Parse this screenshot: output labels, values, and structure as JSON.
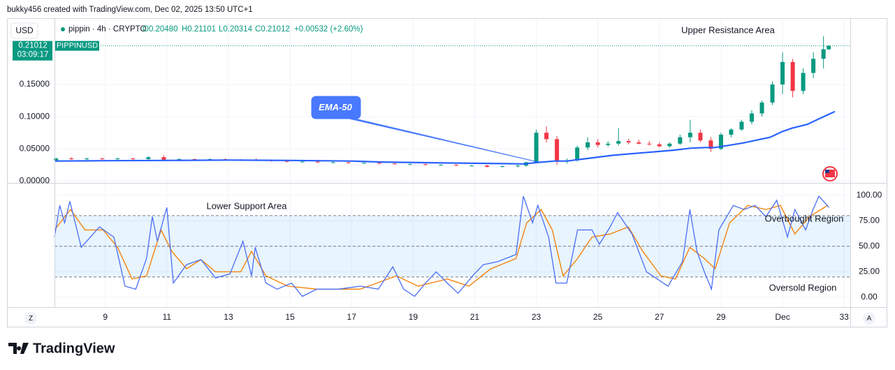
{
  "header": {
    "attribution": "bukky456 created with TradingView.com, Dec 02, 2025 13:50 UTC+1"
  },
  "toolbar": {
    "currency": "USD",
    "left_button": "Z",
    "right_button": "A"
  },
  "footer": {
    "brand": "TradingView"
  },
  "chart_data": [
    {
      "type": "candlestick",
      "legend": {
        "symbol": "pippin · 4h · CRYPTO",
        "open": "O0.20480",
        "high": "H0.21101",
        "low": "L0.20314",
        "close": "C0.21012",
        "change": "+0.00532 (+2.60%)"
      },
      "last_price": {
        "price": "0.21012",
        "countdown": "03:09:17",
        "ticker": "PIPPINUSD"
      },
      "annotations": {
        "upper": "Upper Resistance Area"
      },
      "up_color": "#089981",
      "down_color": "#f23645",
      "x": [
        7.4,
        7.9,
        8.4,
        8.9,
        9.4,
        9.9,
        10.4,
        10.9,
        11.4,
        11.9,
        12.4,
        12.9,
        13.4,
        13.9,
        14.4,
        14.9,
        15.4,
        15.9,
        16.4,
        16.9,
        17.4,
        17.9,
        18.4,
        18.9,
        19.4,
        19.9,
        20.4,
        20.9,
        21.4,
        21.9,
        22.4,
        22.67,
        23.0,
        23.33,
        23.67,
        24.0,
        24.33,
        24.67,
        25.0,
        25.33,
        25.67,
        26.0,
        26.33,
        26.67,
        27.0,
        27.33,
        27.67,
        28.0,
        28.33,
        28.67,
        29.0,
        29.33,
        29.67,
        30.0,
        30.33,
        30.67,
        31.0,
        31.33,
        31.67,
        32.0,
        32.33,
        32.5
      ],
      "open": [
        0.032,
        0.035,
        0.034,
        0.035,
        0.034,
        0.035,
        0.034,
        0.037,
        0.033,
        0.034,
        0.033,
        0.034,
        0.033,
        0.033,
        0.032,
        0.031,
        0.03,
        0.03,
        0.029,
        0.029,
        0.028,
        0.028,
        0.027,
        0.026,
        0.026,
        0.025,
        0.025,
        0.024,
        0.024,
        0.022,
        0.023,
        0.024,
        0.029,
        0.075,
        0.065,
        0.03,
        0.032,
        0.052,
        0.06,
        0.056,
        0.058,
        0.062,
        0.06,
        0.058,
        0.057,
        0.054,
        0.058,
        0.068,
        0.075,
        0.063,
        0.05,
        0.072,
        0.08,
        0.092,
        0.105,
        0.122,
        0.15,
        0.185,
        0.14,
        0.168,
        0.19,
        0.2048
      ],
      "high": [
        0.036,
        0.037,
        0.036,
        0.036,
        0.036,
        0.036,
        0.038,
        0.04,
        0.035,
        0.035,
        0.035,
        0.035,
        0.034,
        0.035,
        0.033,
        0.032,
        0.031,
        0.031,
        0.03,
        0.03,
        0.029,
        0.029,
        0.028,
        0.027,
        0.027,
        0.026,
        0.026,
        0.025,
        0.025,
        0.024,
        0.025,
        0.03,
        0.08,
        0.085,
        0.07,
        0.035,
        0.055,
        0.068,
        0.065,
        0.062,
        0.082,
        0.066,
        0.064,
        0.062,
        0.06,
        0.06,
        0.072,
        0.095,
        0.08,
        0.068,
        0.075,
        0.082,
        0.095,
        0.11,
        0.125,
        0.155,
        0.2,
        0.19,
        0.175,
        0.2,
        0.225,
        0.21101
      ],
      "low": [
        0.03,
        0.033,
        0.032,
        0.033,
        0.033,
        0.033,
        0.033,
        0.031,
        0.032,
        0.032,
        0.032,
        0.032,
        0.032,
        0.031,
        0.03,
        0.029,
        0.029,
        0.028,
        0.028,
        0.027,
        0.027,
        0.026,
        0.026,
        0.025,
        0.024,
        0.024,
        0.023,
        0.023,
        0.021,
        0.021,
        0.021,
        0.022,
        0.028,
        0.06,
        0.025,
        0.027,
        0.03,
        0.048,
        0.052,
        0.053,
        0.055,
        0.057,
        0.057,
        0.055,
        0.052,
        0.052,
        0.056,
        0.06,
        0.06,
        0.045,
        0.048,
        0.068,
        0.078,
        0.088,
        0.1,
        0.118,
        0.135,
        0.13,
        0.135,
        0.16,
        0.175,
        0.20314
      ],
      "close": [
        0.035,
        0.034,
        0.035,
        0.034,
        0.035,
        0.034,
        0.037,
        0.033,
        0.034,
        0.033,
        0.034,
        0.033,
        0.033,
        0.032,
        0.031,
        0.03,
        0.03,
        0.029,
        0.029,
        0.028,
        0.028,
        0.027,
        0.026,
        0.026,
        0.025,
        0.025,
        0.024,
        0.024,
        0.022,
        0.023,
        0.024,
        0.029,
        0.075,
        0.065,
        0.03,
        0.032,
        0.052,
        0.06,
        0.056,
        0.058,
        0.062,
        0.06,
        0.058,
        0.057,
        0.054,
        0.058,
        0.068,
        0.075,
        0.063,
        0.05,
        0.072,
        0.08,
        0.092,
        0.105,
        0.122,
        0.15,
        0.185,
        0.14,
        0.168,
        0.19,
        0.2048,
        0.21012
      ],
      "series": [
        {
          "name": "EMA-50",
          "color": "#2962ff",
          "x": [
            7.35,
            9,
            11,
            13,
            15,
            17,
            18,
            20,
            22,
            22.6,
            23.1,
            23.6,
            24,
            24.5,
            25,
            25.5,
            26,
            26.5,
            27,
            27.5,
            28,
            28.5,
            28.8,
            29.2,
            29.7,
            30.2,
            30.6,
            31,
            31.3,
            31.8,
            32.2,
            32.7
          ],
          "values": [
            0.031,
            0.0315,
            0.032,
            0.0325,
            0.032,
            0.031,
            0.0295,
            0.028,
            0.027,
            0.0265,
            0.029,
            0.031,
            0.031,
            0.034,
            0.037,
            0.04,
            0.042,
            0.044,
            0.046,
            0.048,
            0.051,
            0.052,
            0.052,
            0.055,
            0.059,
            0.064,
            0.068,
            0.077,
            0.082,
            0.088,
            0.097,
            0.108
          ]
        }
      ],
      "xlim": [
        7.35,
        33.2
      ],
      "xticks": [
        9,
        11,
        13,
        15,
        17,
        19,
        21,
        23,
        25,
        27,
        29,
        {
          "value": 31,
          "label": "Dec"
        },
        33
      ],
      "ylim": [
        -0.003,
        0.251
      ],
      "yticks": [
        {
          "value": 0,
          "label": "0.00000"
        },
        {
          "value": 0.05,
          "label": "0.05000"
        },
        {
          "value": 0.1,
          "label": "0.10000"
        },
        {
          "value": 0.15,
          "label": "0.15000"
        }
      ],
      "grid": true
    },
    {
      "type": "line",
      "annotations": {
        "lower": "Lower Support Area",
        "overbought": "Overbought Region",
        "oversold": "Oversold Region"
      },
      "levels": [
        20,
        50,
        80
      ],
      "band_color": "#2196f3",
      "series": [
        {
          "color": "#4a6ef5",
          "x": [
            7.35,
            7.52,
            7.68,
            7.85,
            8.22,
            8.81,
            9.28,
            9.64,
            9.99,
            10.34,
            10.53,
            10.69,
            11.0,
            11.21,
            11.64,
            12.11,
            12.58,
            13.05,
            13.47,
            13.75,
            13.87,
            14.22,
            14.58,
            15.05,
            15.4,
            15.87,
            16.58,
            17.28,
            17.87,
            18.34,
            18.69,
            19.05,
            19.4,
            19.75,
            20.11,
            20.46,
            20.93,
            21.28,
            21.75,
            22.34,
            22.58,
            22.88,
            23.05,
            23.4,
            23.64,
            23.99,
            24.34,
            24.81,
            25.05,
            25.4,
            25.64,
            26.11,
            26.58,
            27.28,
            27.75,
            27.99,
            28.22,
            28.46,
            28.69,
            28.93,
            29.4,
            29.75,
            30.11,
            30.46,
            30.81,
            31.16,
            31.4,
            31.75,
            31.99,
            32.18,
            32.51
          ],
          "values": [
            59,
            90,
            73,
            94,
            49,
            69,
            59,
            11,
            8,
            38,
            79,
            55,
            88,
            14,
            32,
            37,
            19,
            23,
            55,
            21,
            49,
            14,
            8,
            14,
            1,
            8,
            8,
            11,
            8,
            30,
            8,
            1,
            14,
            25,
            14,
            4,
            21,
            32,
            35,
            42,
            99,
            73,
            90,
            59,
            14,
            14,
            66,
            66,
            52,
            69,
            83,
            62,
            25,
            11,
            35,
            86,
            45,
            25,
            8,
            66,
            90,
            86,
            90,
            79,
            95,
            59,
            86,
            66,
            86,
            99,
            88
          ]
        },
        {
          "color": "#f57c00",
          "x": [
            7.35,
            7.87,
            8.34,
            8.93,
            9.4,
            9.87,
            10.34,
            10.81,
            11.16,
            11.64,
            12.11,
            12.58,
            13.4,
            13.75,
            14.22,
            14.93,
            15.87,
            17.28,
            18.46,
            19.16,
            20.11,
            20.81,
            21.52,
            22.34,
            22.69,
            23.16,
            23.52,
            23.87,
            24.34,
            24.81,
            25.4,
            25.99,
            26.46,
            27.05,
            27.52,
            27.99,
            28.46,
            28.81,
            29.28,
            29.87,
            30.46,
            30.93,
            31.4,
            31.87,
            32.46
          ],
          "values": [
            66,
            86,
            66,
            66,
            49,
            18,
            21,
            66,
            45,
            28,
            37,
            25,
            25,
            45,
            21,
            11,
            8,
            8,
            21,
            11,
            18,
            11,
            28,
            38,
            73,
            86,
            66,
            21,
            38,
            59,
            62,
            69,
            45,
            21,
            18,
            49,
            38,
            28,
            73,
            90,
            86,
            90,
            62,
            79,
            90
          ]
        }
      ],
      "xlim": [
        7.35,
        33.2
      ],
      "ylim": [
        -9.6,
        110
      ],
      "yticks": [
        {
          "value": 0,
          "label": "0.00"
        },
        {
          "value": 25,
          "label": "25.00"
        },
        {
          "value": 50,
          "label": "50.00"
        },
        {
          "value": 75,
          "label": "75.00"
        },
        {
          "value": 100,
          "label": "100.00"
        }
      ],
      "grid": true
    }
  ]
}
